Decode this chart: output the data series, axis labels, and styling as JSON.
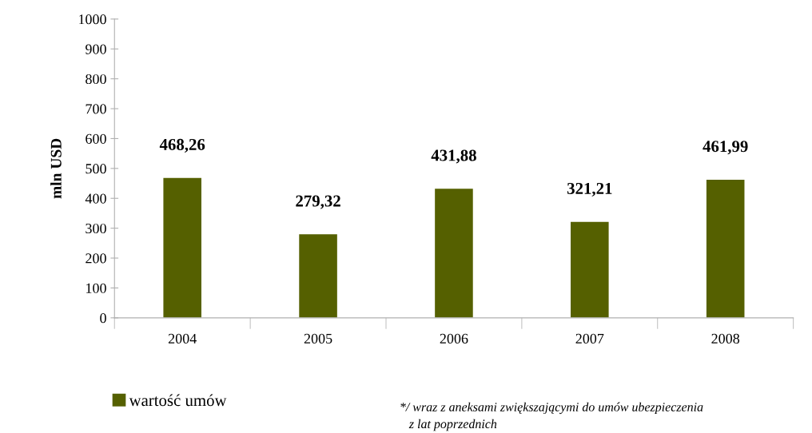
{
  "chart_data": {
    "type": "bar",
    "ylabel": "mln USD",
    "categories": [
      "2004",
      "2005",
      "2006",
      "2007",
      "2008"
    ],
    "series": [
      {
        "name": "wartość umów",
        "color": "#556000",
        "values": [
          468.26,
          279.32,
          431.88,
          321.21,
          461.99
        ]
      }
    ],
    "value_labels": [
      "468,26",
      "279,32",
      "431,88",
      "321,21",
      "461,99"
    ],
    "ylim": [
      0,
      1000
    ],
    "yticks": [
      0,
      100,
      200,
      300,
      400,
      500,
      600,
      700,
      800,
      900,
      1000
    ],
    "grid": false,
    "legend": "bottom left",
    "annotations": [
      "*/ wraz z aneksami zwiększającymi do umów ubezpieczenia\n   z lat poprzednich"
    ]
  }
}
